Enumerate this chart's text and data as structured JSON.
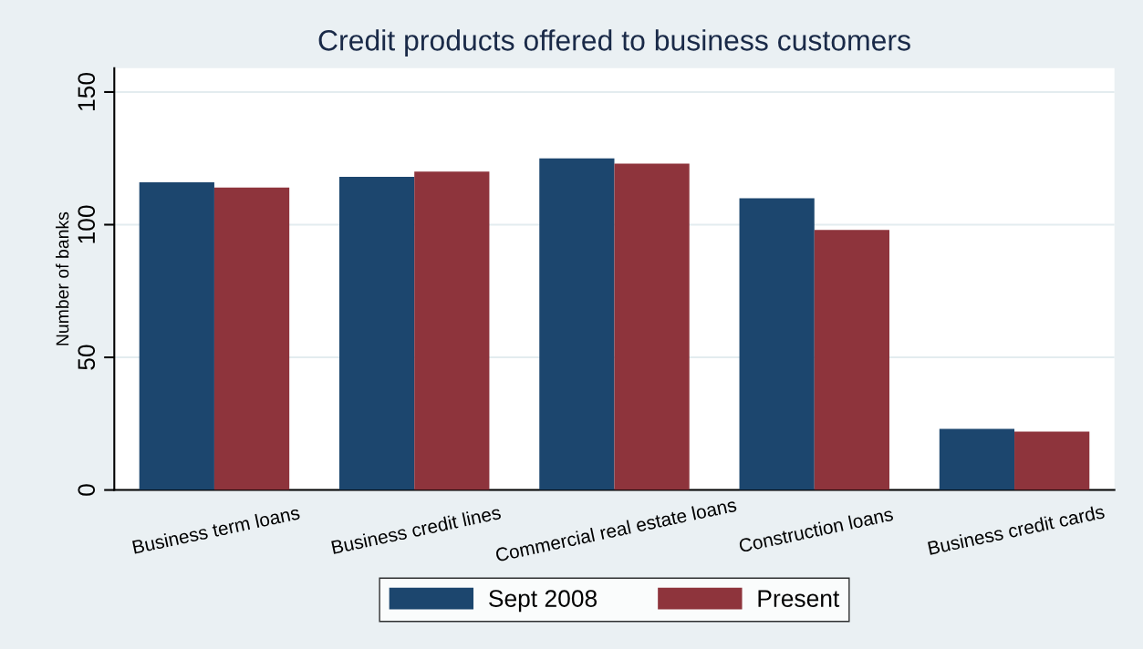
{
  "chart_data": {
    "type": "bar",
    "title": "Credit products offered to business customers",
    "ylabel": "Number of banks",
    "categories": [
      "Business term loans",
      "Business credit lines",
      "Commercial real estate loans",
      "Construction loans",
      "Business credit cards"
    ],
    "series": [
      {
        "name": "Sept 2008",
        "color": "#1c466e",
        "values": [
          116,
          118,
          125,
          110,
          23
        ]
      },
      {
        "name": "Present",
        "color": "#8e343c",
        "values": [
          114,
          120,
          123,
          98,
          22
        ]
      }
    ],
    "ylim": [
      0,
      159
    ],
    "yticks": [
      0,
      50,
      100,
      150
    ],
    "grid": "y",
    "legend": "bottom"
  }
}
